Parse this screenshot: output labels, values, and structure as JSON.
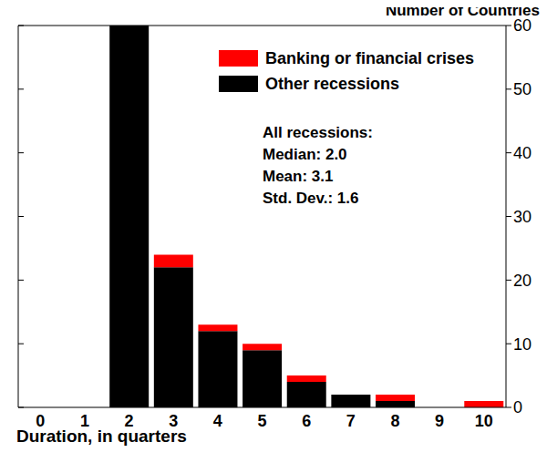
{
  "chart_data": {
    "type": "bar",
    "title": "Number of Countries",
    "x_label": "Duration, in quarters",
    "categories": [
      "0",
      "1",
      "2",
      "3",
      "4",
      "5",
      "6",
      "7",
      "8",
      "9",
      "10"
    ],
    "series": [
      {
        "name": "Other recessions",
        "color": "#000000",
        "values": [
          0,
          0,
          60,
          22,
          12,
          9,
          4,
          2,
          1,
          0,
          0
        ]
      },
      {
        "name": "Banking or financial crises",
        "color": "#ff0000",
        "values": [
          0,
          0,
          0,
          2,
          1,
          1,
          1,
          0,
          1,
          0,
          1
        ]
      }
    ],
    "stacked": true,
    "ylim": [
      0,
      60
    ],
    "yticks": [
      0,
      10,
      20,
      30,
      40,
      50,
      60
    ],
    "legend": "upper right",
    "annotation": [
      "All recessions:",
      "Median: 2.0",
      "Mean: 3.1",
      "Std. Dev.: 1.6"
    ],
    "grid": false
  }
}
